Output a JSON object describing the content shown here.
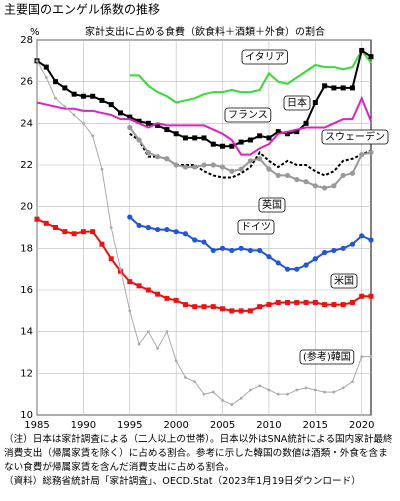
{
  "chart_data": {
    "type": "line",
    "title": "主要国のエンゲル係数の推移",
    "subtitle": "家計支出に占める食費（飲食料＋酒類＋外食）の割合",
    "y_label": "%",
    "x": [
      1985,
      1986,
      1987,
      1988,
      1989,
      1990,
      1991,
      1992,
      1993,
      1994,
      1995,
      1996,
      1997,
      1998,
      1999,
      2000,
      2001,
      2002,
      2003,
      2004,
      2005,
      2006,
      2007,
      2008,
      2009,
      2010,
      2011,
      2012,
      2013,
      2014,
      2015,
      2016,
      2017,
      2018,
      2019,
      2020,
      2021
    ],
    "xlim": [
      1985,
      2021
    ],
    "xticks": [
      1985,
      1990,
      1995,
      2000,
      2005,
      2010,
      2015,
      2020
    ],
    "ylim": [
      10,
      28
    ],
    "yticks": [
      10,
      12,
      14,
      16,
      18,
      20,
      22,
      24,
      26,
      28
    ],
    "grid": true,
    "series": [
      {
        "name": "イタリア",
        "color": "#33dd33",
        "marker": "none",
        "dash": false,
        "values": [
          null,
          null,
          null,
          null,
          null,
          null,
          null,
          null,
          null,
          null,
          26.3,
          26.3,
          25.8,
          25.5,
          25.3,
          25.0,
          25.1,
          25.2,
          25.4,
          25.5,
          25.5,
          25.6,
          25.5,
          25.5,
          25.6,
          26.4,
          26.0,
          25.9,
          26.2,
          26.5,
          26.8,
          26.7,
          26.7,
          26.6,
          26.7,
          27.5,
          26.9
        ]
      },
      {
        "name": "日本",
        "color": "#000000",
        "marker": "square",
        "dash": false,
        "values": [
          27.0,
          26.7,
          26.0,
          25.7,
          25.4,
          25.3,
          25.3,
          25.1,
          24.9,
          24.5,
          24.3,
          24.1,
          24.0,
          23.9,
          23.7,
          23.5,
          23.3,
          23.3,
          23.3,
          23.0,
          22.9,
          22.9,
          23.1,
          23.2,
          23.4,
          23.3,
          23.6,
          23.5,
          23.6,
          24.0,
          25.0,
          25.8,
          25.7,
          25.7,
          25.7,
          27.5,
          27.2
        ]
      },
      {
        "name": "フランス",
        "color": "#e020c0",
        "marker": "none",
        "dash": false,
        "values": [
          25.0,
          24.9,
          24.8,
          24.7,
          24.7,
          24.6,
          24.6,
          24.5,
          24.4,
          24.2,
          24.2,
          24.0,
          23.8,
          24.0,
          23.9,
          23.9,
          23.9,
          23.9,
          23.9,
          23.7,
          23.5,
          23.2,
          22.5,
          22.5,
          22.8,
          23.0,
          23.5,
          23.6,
          23.7,
          23.8,
          23.8,
          23.8,
          24.0,
          24.2,
          24.2,
          25.2,
          24.1
        ]
      },
      {
        "name": "スウェーデン",
        "color": "#000000",
        "marker": "none",
        "dash": true,
        "values": [
          null,
          null,
          null,
          null,
          null,
          null,
          null,
          null,
          null,
          null,
          23.5,
          23.2,
          22.4,
          22.4,
          22.3,
          22.0,
          22.0,
          22.0,
          21.7,
          21.5,
          21.4,
          21.4,
          21.6,
          21.9,
          22.6,
          22.2,
          21.9,
          22.2,
          22.0,
          22.0,
          21.7,
          21.5,
          21.7,
          22.2,
          22.3,
          22.5,
          22.7
        ]
      },
      {
        "name": "英国",
        "color": "#999999",
        "marker": "circle",
        "dash": false,
        "values": [
          null,
          null,
          null,
          null,
          null,
          null,
          null,
          null,
          null,
          null,
          23.8,
          23.2,
          22.6,
          22.4,
          22.3,
          22.0,
          21.9,
          21.9,
          22.0,
          22.0,
          21.9,
          21.7,
          21.8,
          22.2,
          22.3,
          21.8,
          21.5,
          21.5,
          21.3,
          21.2,
          21.0,
          20.9,
          21.0,
          21.5,
          21.6,
          22.5,
          22.6
        ]
      },
      {
        "name": "ドイツ",
        "color": "#2255dd",
        "marker": "circle",
        "dash": false,
        "values": [
          null,
          null,
          null,
          null,
          null,
          null,
          null,
          null,
          null,
          null,
          19.5,
          19.1,
          19.0,
          18.9,
          18.9,
          18.8,
          18.7,
          18.4,
          18.3,
          17.9,
          18.0,
          17.9,
          18.0,
          17.9,
          17.9,
          17.6,
          17.3,
          17.0,
          17.0,
          17.2,
          17.5,
          17.8,
          17.9,
          18.0,
          18.2,
          18.6,
          18.4
        ]
      },
      {
        "name": "米国",
        "color": "#ee1111",
        "marker": "square",
        "dash": false,
        "values": [
          19.4,
          19.2,
          19.0,
          18.8,
          18.7,
          18.8,
          18.8,
          18.2,
          17.5,
          16.9,
          16.4,
          16.2,
          16.0,
          15.8,
          15.6,
          15.5,
          15.3,
          15.2,
          15.2,
          15.2,
          15.1,
          15.0,
          15.0,
          15.0,
          15.2,
          15.3,
          15.4,
          15.4,
          15.4,
          15.4,
          15.4,
          15.3,
          15.3,
          15.3,
          15.4,
          15.7,
          15.7
        ]
      },
      {
        "name": "(参考)韓国",
        "color": "#aaaaaa",
        "marker": "dot",
        "dash": false,
        "values": [
          27.0,
          26.2,
          25.2,
          24.8,
          24.4,
          24.0,
          23.4,
          21.8,
          19.0,
          17.0,
          15.0,
          13.4,
          14.0,
          13.2,
          14.0,
          12.6,
          11.8,
          11.6,
          11.0,
          11.1,
          10.7,
          10.5,
          10.8,
          11.2,
          11.4,
          11.2,
          11.0,
          11.0,
          11.2,
          11.3,
          11.2,
          11.1,
          11.1,
          11.3,
          11.6,
          12.8,
          12.8
        ]
      }
    ]
  },
  "notes": [
    "（注）日本は家計調査による（二人以上の世帯）。日本以外はSNA統計による国内家計最終消費支出（帰属家賃を除く）に占める割合。参考に示した韓国の数値は酒類・外食を含まない食費が帰属家賃を含んだ消費支出に占める割合。",
    "（資料）総務省統計局「家計調査」、OECD.Stat（2023年1月19日ダウンロード）"
  ]
}
